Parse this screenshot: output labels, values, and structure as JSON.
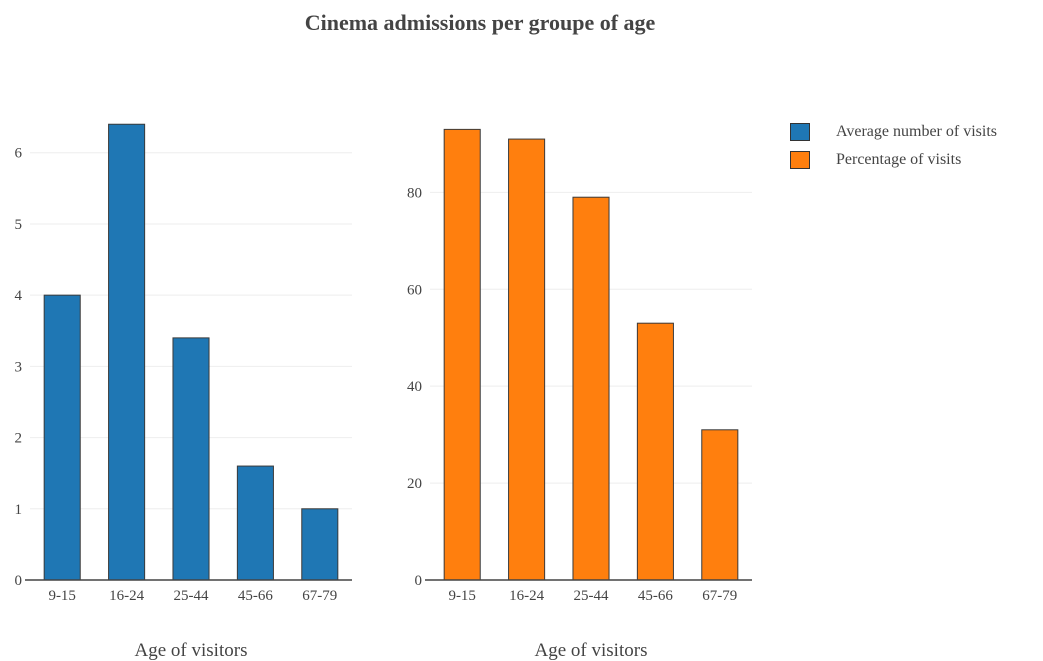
{
  "title": "Cinema admissions per groupe of age",
  "chart_data": {
    "type": "bar",
    "categories": [
      "9-15",
      "16-24",
      "25-44",
      "45-66",
      "67-79"
    ],
    "series": [
      {
        "name": "Average number of visits",
        "values": [
          4,
          6.4,
          3.4,
          1.6,
          1
        ],
        "color": "#1f77b4"
      },
      {
        "name": "Percentage of visits",
        "values": [
          93,
          91,
          79,
          53,
          31
        ],
        "color": "#ff7f0e"
      }
    ],
    "subplots": [
      {
        "series_index": 0,
        "xlabel": "Age of visitors",
        "ylabel": "",
        "ylim": [
          0,
          6.6
        ],
        "yticks": [
          0,
          1,
          2,
          3,
          4,
          5,
          6
        ]
      },
      {
        "series_index": 1,
        "xlabel": "Age of visitors",
        "ylabel": "",
        "ylim": [
          0,
          97
        ],
        "yticks": [
          0,
          20,
          40,
          60,
          80
        ]
      }
    ],
    "grid": true,
    "legend_position": "top-right"
  }
}
